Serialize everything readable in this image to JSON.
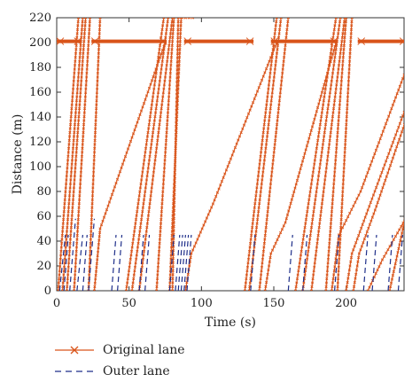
{
  "chart_data": {
    "type": "line",
    "xlabel": "Time (s)",
    "ylabel": "Distance (m)",
    "xlim": [
      0,
      240
    ],
    "ylim": [
      0,
      220
    ],
    "xticks": [
      0,
      50,
      100,
      150,
      200
    ],
    "yticks": [
      0,
      20,
      40,
      60,
      80,
      100,
      120,
      140,
      160,
      180,
      200,
      220
    ],
    "grid": false,
    "legend_position": "below",
    "series": [
      {
        "name": "Original lane",
        "color": "#d9541a",
        "marker": "x",
        "vehicles": [
          {
            "x": [
              1,
              15
            ],
            "y": [
              0,
              220
            ]
          },
          {
            "x": [
              4,
              18
            ],
            "y": [
              0,
              220
            ]
          },
          {
            "x": [
              7,
              20
            ],
            "y": [
              0,
              220
            ]
          },
          {
            "x": [
              12,
              23
            ],
            "y": [
              0,
              220
            ]
          },
          {
            "x": [
              22,
              30
            ],
            "y": [
              0,
              220
            ]
          },
          {
            "x": [
              26,
              30,
              75
            ],
            "y": [
              0,
              50,
              200
            ]
          },
          {
            "x": [
              48,
              74
            ],
            "y": [
              0,
              220
            ]
          },
          {
            "x": [
              52,
              77
            ],
            "y": [
              0,
              220
            ]
          },
          {
            "x": [
              57,
              80
            ],
            "y": [
              0,
              220
            ]
          },
          {
            "x": [
              69,
              81
            ],
            "y": [
              0,
              220
            ]
          },
          {
            "x": [
              78,
              86
            ],
            "y": [
              0,
              220
            ]
          },
          {
            "x": [
              80,
              84,
              94
            ],
            "y": [
              0,
              220,
              220
            ]
          },
          {
            "x": [
              89,
              93,
              108,
              152
            ],
            "y": [
              0,
              30,
              70,
              200
            ]
          },
          {
            "x": [
              130,
              152
            ],
            "y": [
              0,
              220
            ]
          },
          {
            "x": [
              133,
              155
            ],
            "y": [
              0,
              220
            ]
          },
          {
            "x": [
              140,
              160
            ],
            "y": [
              0,
              220
            ]
          },
          {
            "x": [
              144,
              148,
              158,
              193
            ],
            "y": [
              0,
              30,
              55,
              200
            ]
          },
          {
            "x": [
              165,
              193
            ],
            "y": [
              0,
              220
            ]
          },
          {
            "x": [
              170,
              196
            ],
            "y": [
              0,
              220
            ]
          },
          {
            "x": [
              176,
              199
            ],
            "y": [
              0,
              220
            ]
          },
          {
            "x": [
              186,
              200
            ],
            "y": [
              0,
              220
            ]
          },
          {
            "x": [
              190,
              195,
              210,
              242
            ],
            "y": [
              0,
              45,
              80,
              180
            ]
          },
          {
            "x": [
              194,
              204
            ],
            "y": [
              0,
              220
            ]
          },
          {
            "x": [
              200,
              204,
              215,
              242
            ],
            "y": [
              0,
              30,
              65,
              150
            ]
          },
          {
            "x": [
              205,
              209,
              220,
              242
            ],
            "y": [
              0,
              30,
              65,
              140
            ]
          },
          {
            "x": [
              215,
              225,
              242
            ],
            "y": [
              0,
              25,
              60
            ]
          },
          {
            "x": [
              230,
              242
            ],
            "y": [
              0,
              65
            ]
          }
        ]
      },
      {
        "name": "Outer lane",
        "color": "#1f2f8a",
        "dash": true,
        "vehicles": [
          {
            "x": [
              2,
              6
            ],
            "y": [
              0,
              45
            ]
          },
          {
            "x": [
              5,
              8
            ],
            "y": [
              0,
              45
            ]
          },
          {
            "x": [
              9,
              13
            ],
            "y": [
              0,
              58
            ]
          },
          {
            "x": [
              14,
              18
            ],
            "y": [
              0,
              45
            ]
          },
          {
            "x": [
              18,
              21
            ],
            "y": [
              0,
              45
            ]
          },
          {
            "x": [
              22,
              26
            ],
            "y": [
              0,
              58
            ]
          },
          {
            "x": [
              38,
              41
            ],
            "y": [
              0,
              45
            ]
          },
          {
            "x": [
              42,
              45
            ],
            "y": [
              0,
              45
            ]
          },
          {
            "x": [
              57,
              60
            ],
            "y": [
              0,
              45
            ]
          },
          {
            "x": [
              61,
              64
            ],
            "y": [
              0,
              45
            ]
          },
          {
            "x": [
              78,
              81
            ],
            "y": [
              0,
              45
            ]
          },
          {
            "x": [
              82,
              85
            ],
            "y": [
              0,
              45
            ]
          },
          {
            "x": [
              84,
              87
            ],
            "y": [
              0,
              45
            ]
          },
          {
            "x": [
              86,
              89
            ],
            "y": [
              0,
              45
            ]
          },
          {
            "x": [
              88,
              91
            ],
            "y": [
              0,
              45
            ]
          },
          {
            "x": [
              90,
              93
            ],
            "y": [
              0,
              45
            ]
          },
          {
            "x": [
              134,
              137
            ],
            "y": [
              0,
              45
            ]
          },
          {
            "x": [
              160,
              163
            ],
            "y": [
              0,
              45
            ]
          },
          {
            "x": [
              170,
              173
            ],
            "y": [
              0,
              45
            ]
          },
          {
            "x": [
              192,
              195
            ],
            "y": [
              0,
              45
            ]
          },
          {
            "x": [
              212,
              215
            ],
            "y": [
              0,
              45
            ]
          },
          {
            "x": [
              218,
              221
            ],
            "y": [
              0,
              45
            ]
          },
          {
            "x": [
              229,
              232
            ],
            "y": [
              0,
              45
            ]
          },
          {
            "x": [
              236,
              239
            ],
            "y": [
              0,
              45
            ]
          }
        ]
      },
      {
        "name": "",
        "role": "stopped-queue",
        "color": "#d9541a",
        "marker": "x",
        "segments": [
          {
            "x": [
              0,
              17
            ],
            "y": [
              201,
              201
            ]
          },
          {
            "x": [
              24,
              76
            ],
            "y": [
              201,
              201
            ]
          },
          {
            "x": [
              88,
              136
            ],
            "y": [
              201,
              201
            ]
          },
          {
            "x": [
              148,
              194
            ],
            "y": [
              201,
              201
            ]
          },
          {
            "x": [
              208,
              242
            ],
            "y": [
              201,
              201
            ]
          }
        ]
      }
    ]
  }
}
